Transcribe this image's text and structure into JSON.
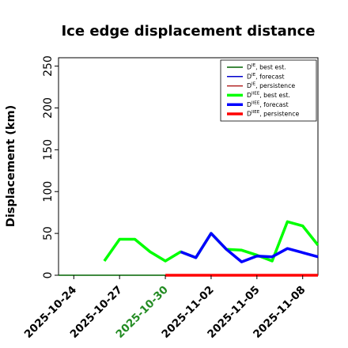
{
  "chart_data": {
    "type": "line",
    "title": "Ice edge displacement distance",
    "xlabel": "",
    "ylabel": "Displacement (km)",
    "x_axis_type": "date",
    "xlim": [
      "2025-10-23",
      "2025-11-09"
    ],
    "ylim": [
      0,
      260
    ],
    "yticks": [
      0,
      50,
      100,
      150,
      200,
      250
    ],
    "xticks": [
      {
        "date": "2025-10-24",
        "label": "2025-10-24",
        "color": "#000000"
      },
      {
        "date": "2025-10-27",
        "label": "2025-10-27",
        "color": "#000000"
      },
      {
        "date": "2025-10-30",
        "label": "2025-10-30",
        "color": "#228b22"
      },
      {
        "date": "2025-11-02",
        "label": "2025-11-02",
        "color": "#000000"
      },
      {
        "date": "2025-11-05",
        "label": "2025-11-05",
        "color": "#000000"
      },
      {
        "date": "2025-11-08",
        "label": "2025-11-08",
        "color": "#000000"
      }
    ],
    "grid": false,
    "legend_position": "top-right",
    "series": [
      {
        "name": "D^IE, best est.",
        "legend_base": "D",
        "legend_sup": "IE",
        "legend_rest": ", best est.",
        "color": "#006400",
        "width": 1.5,
        "points": [
          [
            "2025-10-23",
            0
          ],
          [
            "2025-10-24",
            0
          ],
          [
            "2025-10-25",
            0
          ],
          [
            "2025-10-26",
            0
          ],
          [
            "2025-10-27",
            0
          ],
          [
            "2025-10-28",
            0
          ],
          [
            "2025-10-29",
            0
          ],
          [
            "2025-10-30",
            0
          ]
        ]
      },
      {
        "name": "D^IE, forecast",
        "legend_base": "D",
        "legend_sup": "IE",
        "legend_rest": ", forecast",
        "color": "#0000cd",
        "width": 1.5,
        "points": []
      },
      {
        "name": "D^IE, persistence",
        "legend_base": "D",
        "legend_sup": "IE",
        "legend_rest": ", persistence",
        "color": "#b22222",
        "width": 1.5,
        "points": []
      },
      {
        "name": "D^IIEE, best est.",
        "legend_base": "D",
        "legend_sup": "IIEE",
        "legend_rest": ", best est.",
        "color": "#00ff00",
        "width": 3.5,
        "points": [
          [
            "2025-10-26",
            17
          ],
          [
            "2025-10-27",
            43
          ],
          [
            "2025-10-28",
            43
          ],
          [
            "2025-10-29",
            28
          ],
          [
            "2025-10-30",
            17
          ],
          [
            "2025-10-31",
            28
          ],
          [
            "2025-11-01",
            21
          ],
          [
            "2025-11-02",
            50
          ],
          [
            "2025-11-03",
            31
          ],
          [
            "2025-11-04",
            30
          ],
          [
            "2025-11-05",
            24
          ],
          [
            "2025-11-06",
            17
          ],
          [
            "2025-11-07",
            64
          ],
          [
            "2025-11-08",
            59
          ],
          [
            "2025-11-09",
            36
          ]
        ]
      },
      {
        "name": "D^IIEE, forecast",
        "legend_base": "D",
        "legend_sup": "IIEE",
        "legend_rest": ", forecast",
        "color": "#0000ff",
        "width": 3.5,
        "points": [
          [
            "2025-10-31",
            28
          ],
          [
            "2025-11-01",
            21
          ],
          [
            "2025-11-02",
            50
          ],
          [
            "2025-11-03",
            31
          ],
          [
            "2025-11-04",
            16
          ],
          [
            "2025-11-05",
            23
          ],
          [
            "2025-11-06",
            22
          ],
          [
            "2025-11-07",
            32
          ],
          [
            "2025-11-08",
            27
          ],
          [
            "2025-11-09",
            22
          ]
        ]
      },
      {
        "name": "D^IIEE, persistence",
        "legend_base": "D",
        "legend_sup": "IIEE",
        "legend_rest": ", persistence",
        "color": "#ff0000",
        "width": 3.5,
        "points": [
          [
            "2025-10-30",
            0
          ],
          [
            "2025-10-31",
            0
          ],
          [
            "2025-11-01",
            0
          ],
          [
            "2025-11-02",
            0
          ],
          [
            "2025-11-03",
            0
          ],
          [
            "2025-11-04",
            0
          ],
          [
            "2025-11-05",
            0
          ],
          [
            "2025-11-06",
            0
          ],
          [
            "2025-11-07",
            0
          ],
          [
            "2025-11-08",
            0
          ],
          [
            "2025-11-09",
            0
          ]
        ]
      }
    ]
  }
}
